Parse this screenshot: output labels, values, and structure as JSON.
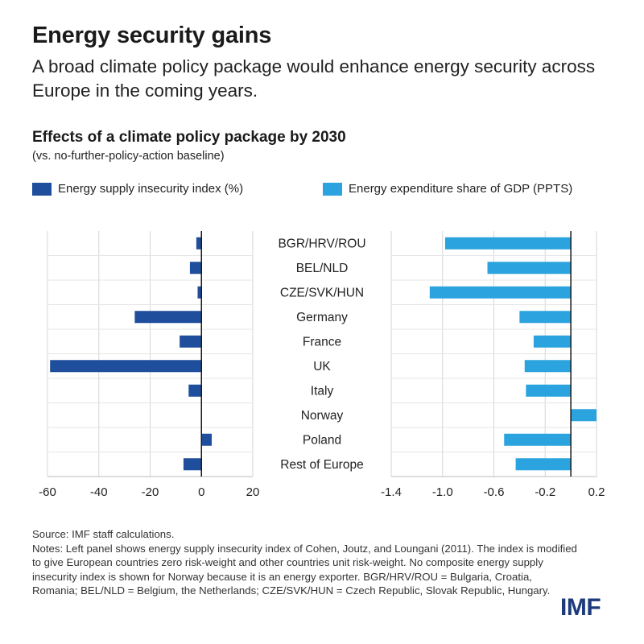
{
  "header": {
    "title": "Energy security gains",
    "subtitle": "A broad climate policy package would enhance energy security across Europe in the coming years."
  },
  "chart_header": {
    "title": "Effects of a climate policy package by 2030",
    "subtitle": "(vs. no-further-policy-action baseline)"
  },
  "legend": [
    {
      "label": "Energy supply insecurity index (%)",
      "color": "#1f4e9c"
    },
    {
      "label": "Energy expenditure share of GDP (PPTS)",
      "color": "#2aa3de"
    }
  ],
  "chart_data": [
    {
      "type": "bar",
      "orientation": "horizontal",
      "categories": [
        "BGR/HRV/ROU",
        "BEL/NLD",
        "CZE/SVK/HUN",
        "Germany",
        "France",
        "UK",
        "Italy",
        "Norway",
        "Poland",
        "Rest of Europe"
      ],
      "series": [
        {
          "name": "Energy supply insecurity index (%)",
          "values": [
            -2,
            -4.5,
            -1.5,
            -26,
            -8.5,
            -59,
            -5,
            null,
            4,
            -7
          ]
        }
      ],
      "xlim": [
        -60,
        20
      ],
      "xticks": [
        "-60",
        "-40",
        "-20",
        "0",
        "20"
      ],
      "grid": "vertical",
      "color": "#1f4e9c"
    },
    {
      "type": "bar",
      "orientation": "horizontal",
      "categories": [
        "BGR/HRV/ROU",
        "BEL/NLD",
        "CZE/SVK/HUN",
        "Germany",
        "France",
        "UK",
        "Italy",
        "Norway",
        "Poland",
        "Rest of Europe"
      ],
      "series": [
        {
          "name": "Energy expenditure share of GDP (PPTS)",
          "values": [
            -0.98,
            -0.65,
            -1.1,
            -0.4,
            -0.29,
            -0.36,
            -0.35,
            0.2,
            -0.52,
            -0.43
          ]
        }
      ],
      "xlim": [
        -1.4,
        0.2
      ],
      "xticks": [
        "-1.4",
        "-1.0",
        "-0.6",
        "-0.2",
        "0.2"
      ],
      "grid": "vertical",
      "color": "#2aa3de"
    }
  ],
  "footer": {
    "source": "Source: IMF staff calculations.",
    "notes": "Notes: Left panel shows energy supply insecurity index of Cohen, Joutz, and Loungani (2011). The index is modified to give European countries zero risk-weight and other countries unit risk-weight.  No composite energy supply insecurity index is shown for Norway because it is an energy exporter. BGR/HRV/ROU = Bulgaria, Croatia, Romania; BEL/NLD = Belgium, the Netherlands; CZE/SVK/HUN = Czech Republic, Slovak Republic, Hungary.",
    "logo": "IMF"
  }
}
